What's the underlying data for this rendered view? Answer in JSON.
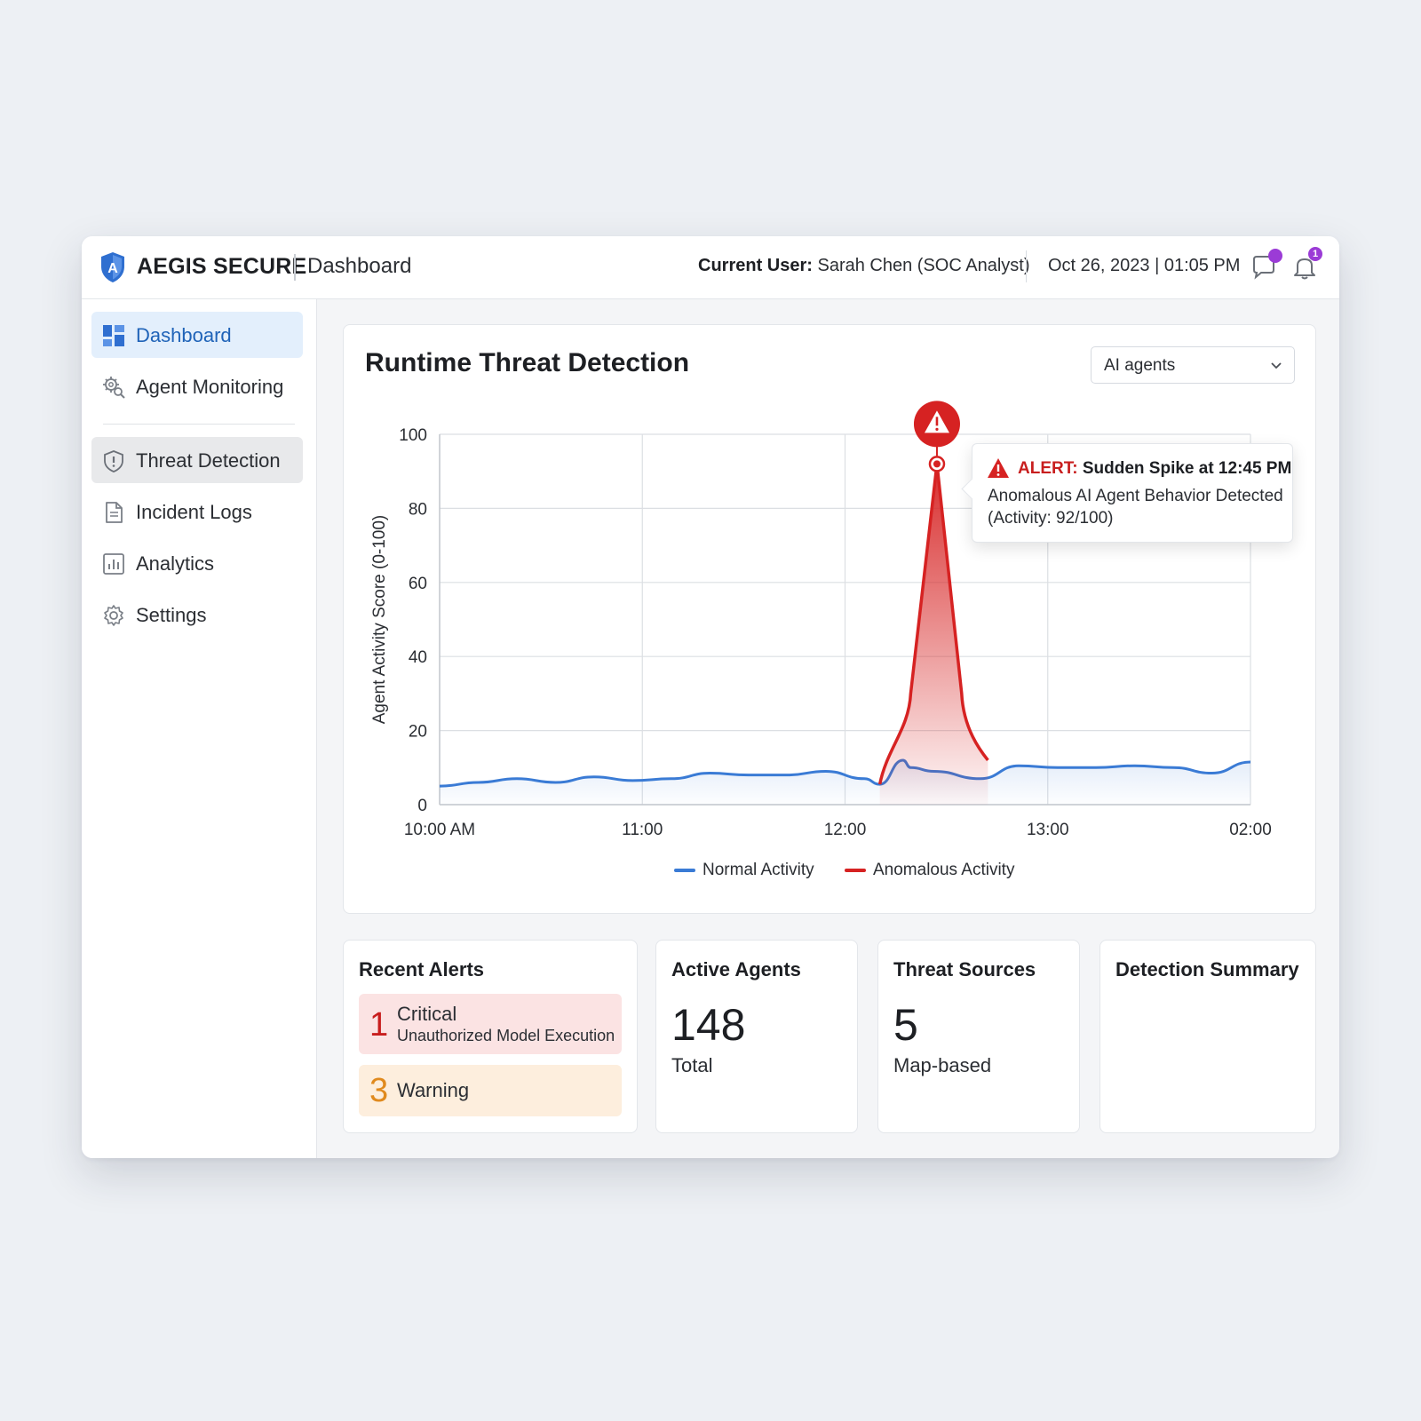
{
  "app": {
    "brand": "AEGIS SECURE",
    "page": "Dashboard",
    "user_label": "Current User:",
    "user_name": "Sarah Chen (SOC Analyst)",
    "datetime": "Oct 26, 2023 | 01:05 PM",
    "notifications": {
      "messages_badge": "",
      "bell_badge": "1"
    }
  },
  "colors": {
    "accent": "#1f63b8",
    "normal_series": "#3a7bd5",
    "anomalous_series": "#d62222",
    "badge": "#9b3bd6"
  },
  "sidebar": {
    "items": [
      {
        "label": "Dashboard",
        "icon": "dashboard-grid-icon",
        "state": "active"
      },
      {
        "label": "Agent Monitoring",
        "icon": "gear-search-icon"
      },
      {
        "label": "Threat Detection",
        "icon": "shield-alert-icon",
        "state": "selected"
      },
      {
        "label": "Incident Logs",
        "icon": "document-icon"
      },
      {
        "label": "Analytics",
        "icon": "bar-chart-icon"
      },
      {
        "label": "Settings",
        "icon": "gear-icon"
      }
    ]
  },
  "chart_card": {
    "title": "Runtime Threat Detection",
    "filter_value": "AI agents",
    "tooltip": {
      "alert_word": "ALERT:",
      "headline": "Sudden Spike at 12:45 PM",
      "line2": "Anomalous AI Agent Behavior Detected",
      "line3": "(Activity: 92/100)"
    }
  },
  "chart_data": {
    "type": "line",
    "ylabel": "Agent Activity Score (0-100)",
    "ylim": [
      0,
      100
    ],
    "y_ticks": [
      0,
      20,
      40,
      60,
      80,
      100
    ],
    "x_tick_labels": [
      "10:00 AM",
      "11:00",
      "12:00",
      "13:00",
      "02:00"
    ],
    "grid": true,
    "legend_position": "bottom-center",
    "series": [
      {
        "name": "Normal Activity",
        "points": [
          [
            0,
            5
          ],
          [
            0.25,
            6
          ],
          [
            0.5,
            7
          ],
          [
            0.75,
            6
          ],
          [
            1.0,
            7.5
          ],
          [
            1.25,
            6.5
          ],
          [
            1.5,
            7
          ],
          [
            1.75,
            8.5
          ],
          [
            2.0,
            8
          ],
          [
            2.25,
            8
          ],
          [
            2.5,
            9
          ],
          [
            2.75,
            7
          ],
          [
            2.85,
            5.5
          ],
          [
            3.0,
            12
          ],
          [
            3.05,
            10
          ],
          [
            3.2,
            9
          ],
          [
            3.5,
            7
          ],
          [
            3.75,
            10.5
          ],
          [
            4.0,
            10
          ],
          [
            4.25,
            10
          ],
          [
            4.5,
            10.5
          ],
          [
            4.75,
            10
          ],
          [
            5.0,
            8.5
          ],
          [
            5.25,
            11.5
          ]
        ]
      },
      {
        "name": "Anomalous Activity",
        "points": [
          [
            2.85,
            5.5
          ],
          [
            3.05,
            30
          ],
          [
            3.22,
            92
          ],
          [
            3.38,
            30
          ],
          [
            3.55,
            12
          ]
        ]
      }
    ],
    "annotation": {
      "label": "Sudden Spike at 12:45 PM",
      "value": 92
    }
  },
  "cards": {
    "recent_alerts": {
      "title": "Recent Alerts",
      "critical_count": "1",
      "critical_label": "Critical",
      "critical_detail": "Unauthorized Model Execution",
      "warning_count": "3",
      "warning_label": "Warning"
    },
    "active_agents": {
      "title": "Active Agents",
      "value": "148",
      "sub": "Total"
    },
    "threat_sources": {
      "title": "Threat Sources",
      "value": "5",
      "sub": "Map-based"
    },
    "detection_summary": {
      "title": "Detection Summary"
    }
  }
}
